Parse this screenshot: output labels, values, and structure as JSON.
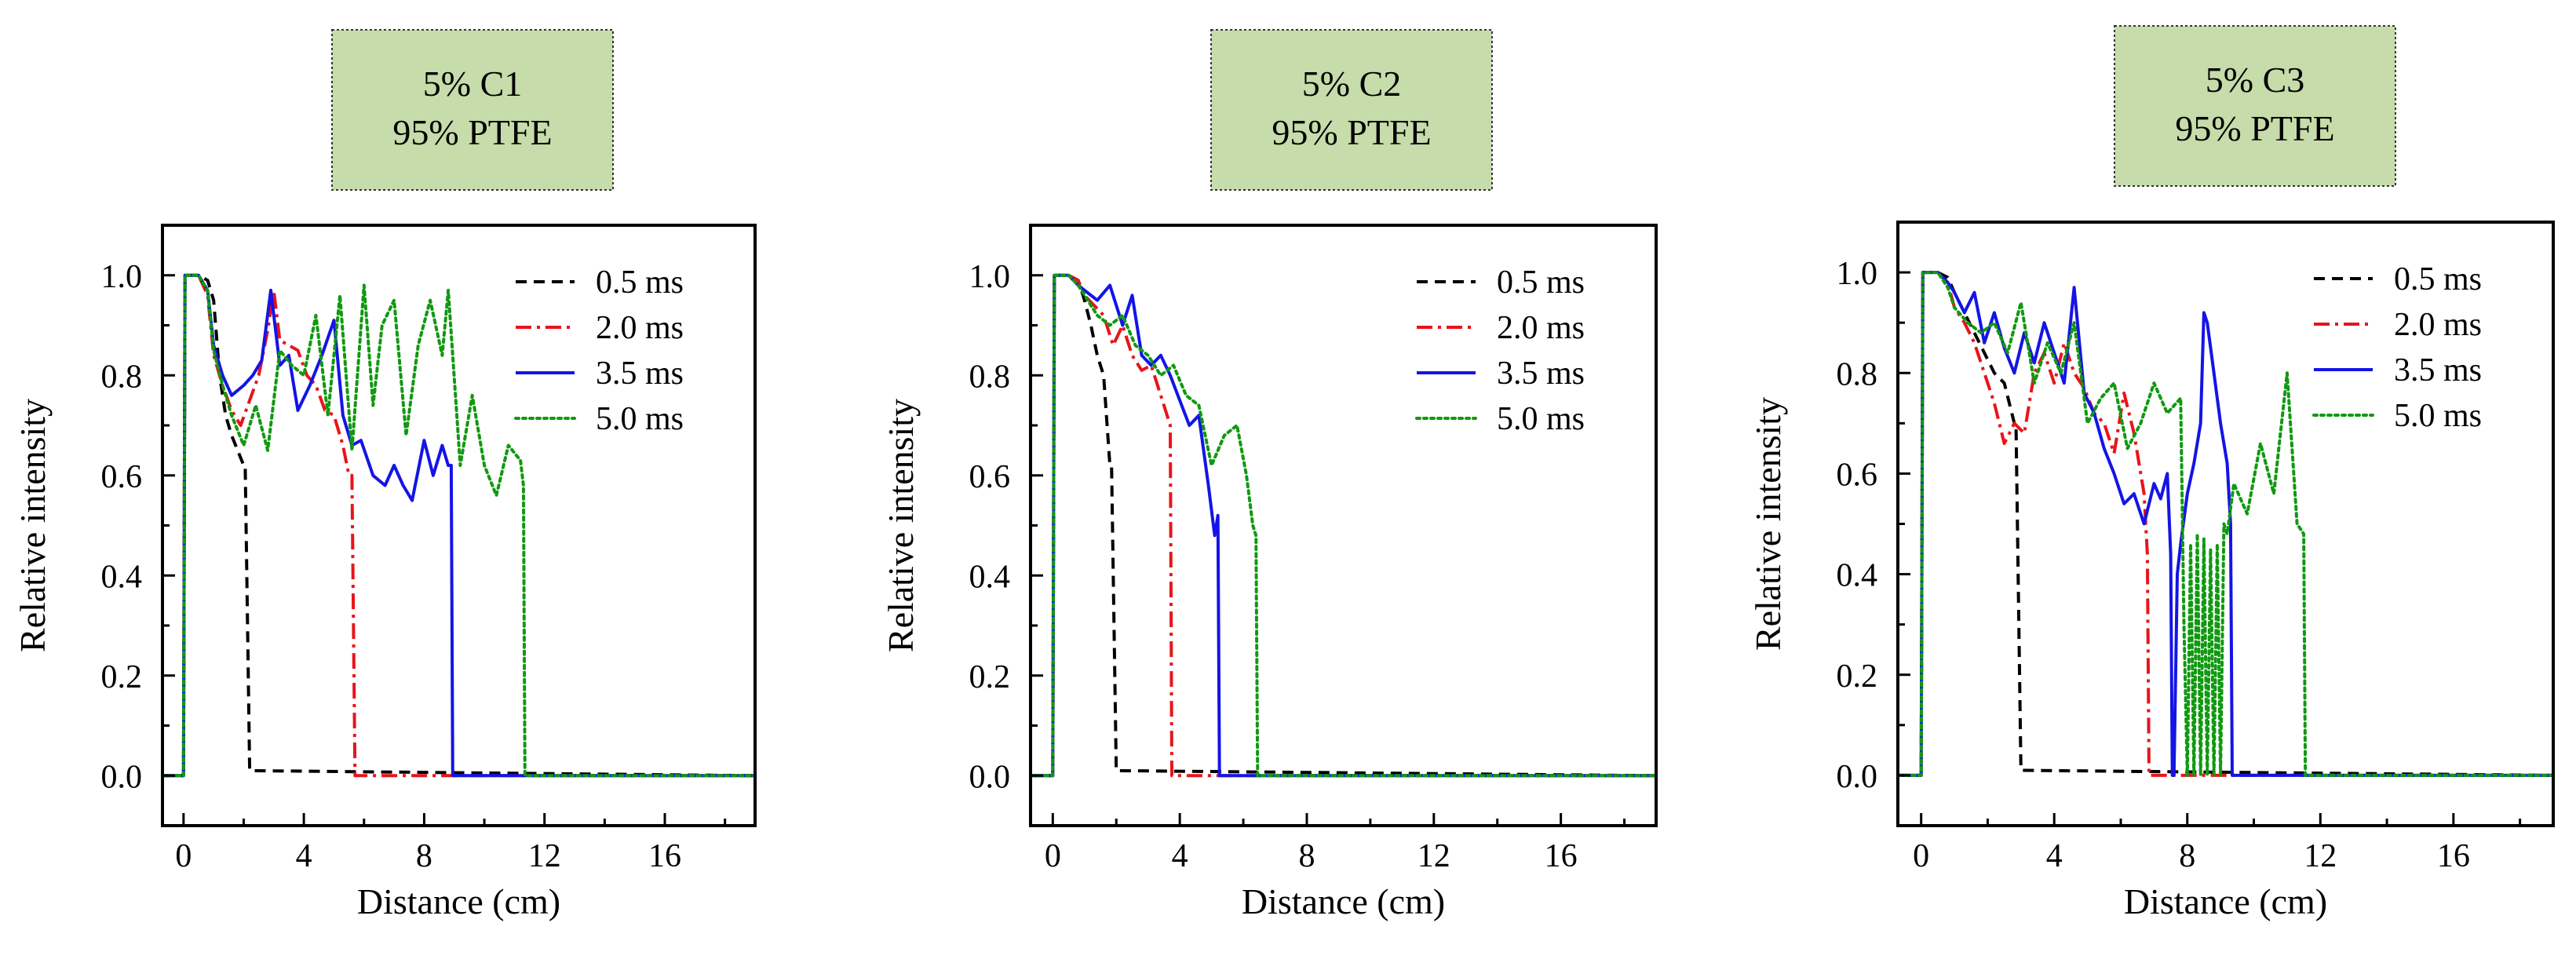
{
  "chart_data": [
    {
      "type": "line",
      "label_lines": [
        "5% C1",
        "95% PTFE"
      ],
      "xlabel": "Distance (cm)",
      "ylabel": "Relative intensity",
      "xlim": [
        -0.7,
        19
      ],
      "ylim": [
        -0.1,
        1.1
      ],
      "xticks": [
        0,
        4,
        8,
        12,
        16
      ],
      "xtick_labels": [
        "0",
        "4",
        "8",
        "12",
        "16"
      ],
      "yticks": [
        0.0,
        0.2,
        0.4,
        0.6,
        0.8,
        1.0
      ],
      "ytick_labels": [
        "0.0",
        "0.2",
        "0.4",
        "0.6",
        "0.8",
        "1.0"
      ],
      "legend_position": "top-right",
      "series": [
        {
          "name": "0.5 ms",
          "color": "#000000",
          "dash": "dashed",
          "x": [
            -0.7,
            0.0,
            0.05,
            0.1,
            0.5,
            0.8,
            1.0,
            1.2,
            1.4,
            1.6,
            1.8,
            2.0,
            2.05,
            2.2,
            19
          ],
          "y": [
            0.0,
            0.0,
            1.0,
            1.0,
            1.0,
            0.99,
            0.95,
            0.8,
            0.72,
            0.68,
            0.65,
            0.62,
            0.62,
            0.01,
            0.0
          ]
        },
        {
          "name": "2.0 ms",
          "color": "#e8141a",
          "dash": "dashdot",
          "x": [
            -0.7,
            0.0,
            0.05,
            0.5,
            0.8,
            1.0,
            1.3,
            1.6,
            1.9,
            2.2,
            2.5,
            2.8,
            3.0,
            3.2,
            3.5,
            3.8,
            4.1,
            4.4,
            4.7,
            5.0,
            5.3,
            5.5,
            5.6,
            5.7,
            19
          ],
          "y": [
            0.0,
            0.0,
            1.0,
            1.0,
            0.96,
            0.84,
            0.78,
            0.73,
            0.7,
            0.75,
            0.8,
            0.89,
            0.97,
            0.87,
            0.86,
            0.85,
            0.8,
            0.78,
            0.73,
            0.72,
            0.66,
            0.6,
            0.6,
            0.0,
            0.0
          ]
        },
        {
          "name": "3.5 ms",
          "color": "#1414e6",
          "dash": "solid",
          "x": [
            -0.7,
            0.0,
            0.05,
            0.5,
            0.8,
            1.0,
            1.3,
            1.6,
            2.0,
            2.3,
            2.6,
            2.9,
            3.2,
            3.5,
            3.8,
            4.2,
            4.6,
            5.0,
            5.3,
            5.6,
            5.9,
            6.3,
            6.7,
            7.0,
            7.3,
            7.6,
            8.0,
            8.3,
            8.6,
            8.8,
            8.9,
            8.95,
            19
          ],
          "y": [
            0.0,
            0.0,
            1.0,
            1.0,
            0.97,
            0.86,
            0.8,
            0.76,
            0.78,
            0.8,
            0.83,
            0.97,
            0.82,
            0.84,
            0.73,
            0.78,
            0.84,
            0.91,
            0.72,
            0.66,
            0.67,
            0.6,
            0.58,
            0.62,
            0.58,
            0.55,
            0.67,
            0.6,
            0.66,
            0.62,
            0.62,
            0.0,
            0.0
          ]
        },
        {
          "name": "5.0 ms",
          "color": "#119911",
          "dash": "dotted",
          "x": [
            -0.7,
            0.0,
            0.05,
            0.5,
            0.8,
            1.0,
            1.3,
            1.6,
            2.0,
            2.4,
            2.8,
            3.2,
            3.6,
            4.0,
            4.4,
            4.8,
            5.2,
            5.6,
            6.0,
            6.3,
            6.6,
            7.0,
            7.4,
            7.8,
            8.2,
            8.6,
            8.8,
            9.2,
            9.6,
            10.0,
            10.4,
            10.8,
            11.2,
            11.3,
            11.35,
            19
          ],
          "y": [
            0.0,
            0.0,
            1.0,
            1.0,
            0.97,
            0.85,
            0.78,
            0.72,
            0.66,
            0.74,
            0.65,
            0.85,
            0.82,
            0.8,
            0.92,
            0.72,
            0.96,
            0.65,
            0.98,
            0.74,
            0.9,
            0.95,
            0.68,
            0.86,
            0.95,
            0.84,
            0.97,
            0.62,
            0.76,
            0.62,
            0.56,
            0.66,
            0.63,
            0.58,
            0.0,
            0.0
          ]
        }
      ]
    },
    {
      "type": "line",
      "label_lines": [
        "5% C2",
        "95% PTFE"
      ],
      "xlabel": "Distance (cm)",
      "ylabel": "Relative intensity",
      "xlim": [
        -0.7,
        19
      ],
      "ylim": [
        -0.1,
        1.1
      ],
      "xticks": [
        0,
        4,
        8,
        12,
        16
      ],
      "xtick_labels": [
        "0",
        "4",
        "8",
        "12",
        "16"
      ],
      "yticks": [
        0.0,
        0.2,
        0.4,
        0.6,
        0.8,
        1.0
      ],
      "ytick_labels": [
        "0.0",
        "0.2",
        "0.4",
        "0.6",
        "0.8",
        "1.0"
      ],
      "legend_position": "top-right",
      "series": [
        {
          "name": "0.5 ms",
          "color": "#000000",
          "dash": "dashed",
          "x": [
            -0.7,
            0.0,
            0.05,
            0.1,
            0.5,
            0.8,
            1.0,
            1.2,
            1.4,
            1.6,
            1.8,
            1.85,
            2.0,
            19
          ],
          "y": [
            0.0,
            0.0,
            1.0,
            1.0,
            1.0,
            0.99,
            0.95,
            0.9,
            0.84,
            0.8,
            0.62,
            0.62,
            0.01,
            0.0
          ]
        },
        {
          "name": "2.0 ms",
          "color": "#e8141a",
          "dash": "dashdot",
          "x": [
            -0.7,
            0.0,
            0.05,
            0.5,
            0.8,
            1.0,
            1.3,
            1.6,
            1.9,
            2.2,
            2.5,
            2.8,
            3.1,
            3.4,
            3.6,
            3.7,
            3.75,
            19
          ],
          "y": [
            0.0,
            0.0,
            1.0,
            1.0,
            0.99,
            0.96,
            0.94,
            0.92,
            0.86,
            0.9,
            0.84,
            0.81,
            0.82,
            0.76,
            0.72,
            0.7,
            0.0,
            0.0
          ]
        },
        {
          "name": "3.5 ms",
          "color": "#1414e6",
          "dash": "solid",
          "x": [
            -0.7,
            0.0,
            0.05,
            0.5,
            0.8,
            1.0,
            1.4,
            1.8,
            2.2,
            2.5,
            2.8,
            3.1,
            3.4,
            3.7,
            4.0,
            4.3,
            4.6,
            4.9,
            5.1,
            5.2,
            5.25,
            19
          ],
          "y": [
            0.0,
            0.0,
            1.0,
            1.0,
            0.98,
            0.97,
            0.95,
            0.98,
            0.9,
            0.96,
            0.84,
            0.82,
            0.84,
            0.8,
            0.75,
            0.7,
            0.72,
            0.58,
            0.48,
            0.52,
            0.0,
            0.0
          ]
        },
        {
          "name": "5.0 ms",
          "color": "#119911",
          "dash": "dotted",
          "x": [
            -0.7,
            0.0,
            0.05,
            0.5,
            0.8,
            1.0,
            1.4,
            1.8,
            2.2,
            2.6,
            3.0,
            3.4,
            3.8,
            4.2,
            4.6,
            5.0,
            5.4,
            5.8,
            6.1,
            6.3,
            6.4,
            6.45,
            19
          ],
          "y": [
            0.0,
            0.0,
            1.0,
            1.0,
            0.98,
            0.96,
            0.92,
            0.9,
            0.92,
            0.86,
            0.84,
            0.8,
            0.82,
            0.76,
            0.74,
            0.62,
            0.68,
            0.7,
            0.6,
            0.5,
            0.48,
            0.0,
            0.0
          ]
        }
      ]
    },
    {
      "type": "line",
      "label_lines": [
        "5% C3",
        "95% PTFE"
      ],
      "xlabel": "Distance (cm)",
      "ylabel": "Relative intensity",
      "xlim": [
        -0.7,
        19
      ],
      "ylim": [
        -0.1,
        1.1
      ],
      "xticks": [
        0,
        4,
        8,
        12,
        16
      ],
      "xtick_labels": [
        "0",
        "4",
        "8",
        "12",
        "16"
      ],
      "yticks": [
        0.0,
        0.2,
        0.4,
        0.6,
        0.8,
        1.0
      ],
      "ytick_labels": [
        "0.0",
        "0.2",
        "0.4",
        "0.6",
        "0.8",
        "1.0"
      ],
      "legend_position": "top-right",
      "series": [
        {
          "name": "0.5 ms",
          "color": "#000000",
          "dash": "dashed",
          "x": [
            -0.7,
            0.0,
            0.05,
            0.1,
            0.5,
            0.8,
            1.0,
            1.3,
            1.6,
            1.9,
            2.2,
            2.5,
            2.8,
            2.85,
            3.0,
            19
          ],
          "y": [
            0.0,
            0.0,
            1.0,
            1.0,
            1.0,
            0.99,
            0.96,
            0.92,
            0.88,
            0.84,
            0.8,
            0.78,
            0.7,
            0.7,
            0.01,
            0.0
          ]
        },
        {
          "name": "2.0 ms",
          "color": "#e8141a",
          "dash": "dashdot",
          "x": [
            -0.7,
            0.0,
            0.05,
            0.5,
            0.8,
            1.0,
            1.3,
            1.6,
            1.9,
            2.2,
            2.5,
            2.8,
            3.1,
            3.4,
            3.7,
            4.0,
            4.3,
            4.6,
            4.9,
            5.2,
            5.5,
            5.8,
            6.1,
            6.4,
            6.7,
            6.8,
            6.85,
            19
          ],
          "y": [
            0.0,
            0.0,
            1.0,
            1.0,
            0.98,
            0.93,
            0.9,
            0.86,
            0.8,
            0.74,
            0.66,
            0.7,
            0.68,
            0.8,
            0.84,
            0.78,
            0.86,
            0.8,
            0.77,
            0.72,
            0.7,
            0.64,
            0.76,
            0.68,
            0.56,
            0.44,
            0.0,
            0.0
          ]
        },
        {
          "name": "3.5 ms",
          "color": "#1414e6",
          "dash": "solid",
          "x": [
            -0.7,
            0.0,
            0.05,
            0.5,
            0.8,
            1.0,
            1.3,
            1.6,
            1.9,
            2.2,
            2.5,
            2.8,
            3.1,
            3.4,
            3.7,
            4.0,
            4.3,
            4.6,
            4.9,
            5.2,
            5.5,
            5.8,
            6.1,
            6.4,
            6.7,
            7.0,
            7.2,
            7.4,
            7.5,
            7.55,
            7.6,
            7.7,
            7.8,
            8.0,
            8.2,
            8.4,
            8.5,
            8.6,
            8.8,
            9.0,
            9.2,
            9.3,
            9.35,
            19
          ],
          "y": [
            0.0,
            0.0,
            1.0,
            1.0,
            0.98,
            0.96,
            0.92,
            0.96,
            0.86,
            0.92,
            0.85,
            0.8,
            0.88,
            0.82,
            0.9,
            0.84,
            0.78,
            0.97,
            0.76,
            0.72,
            0.65,
            0.6,
            0.54,
            0.56,
            0.5,
            0.58,
            0.55,
            0.6,
            0.44,
            0.0,
            0.0,
            0.4,
            0.46,
            0.56,
            0.62,
            0.7,
            0.92,
            0.9,
            0.8,
            0.7,
            0.62,
            0.5,
            0.0,
            0.0
          ]
        },
        {
          "name": "5.0 ms",
          "color": "#119911",
          "dash": "dotted",
          "x": [
            -0.7,
            0.0,
            0.05,
            0.5,
            0.8,
            1.0,
            1.4,
            1.8,
            2.2,
            2.6,
            3.0,
            3.4,
            3.8,
            4.2,
            4.6,
            5.0,
            5.4,
            5.8,
            6.2,
            6.6,
            7.0,
            7.4,
            7.8,
            7.9,
            8.0,
            8.1,
            8.2,
            8.3,
            8.4,
            8.5,
            8.6,
            8.7,
            8.8,
            8.9,
            9.0,
            9.1,
            9.2,
            9.4,
            9.8,
            10.2,
            10.6,
            11.0,
            11.3,
            11.5,
            11.55,
            19
          ],
          "y": [
            0.0,
            0.0,
            1.0,
            1.0,
            0.97,
            0.93,
            0.9,
            0.88,
            0.9,
            0.84,
            0.94,
            0.78,
            0.86,
            0.8,
            0.9,
            0.7,
            0.75,
            0.78,
            0.65,
            0.7,
            0.78,
            0.72,
            0.75,
            0.3,
            0.0,
            0.46,
            0.0,
            0.48,
            0.0,
            0.47,
            0.0,
            0.45,
            0.0,
            0.46,
            0.0,
            0.5,
            0.48,
            0.58,
            0.52,
            0.66,
            0.56,
            0.8,
            0.5,
            0.48,
            0.0,
            0.0
          ]
        }
      ]
    }
  ]
}
